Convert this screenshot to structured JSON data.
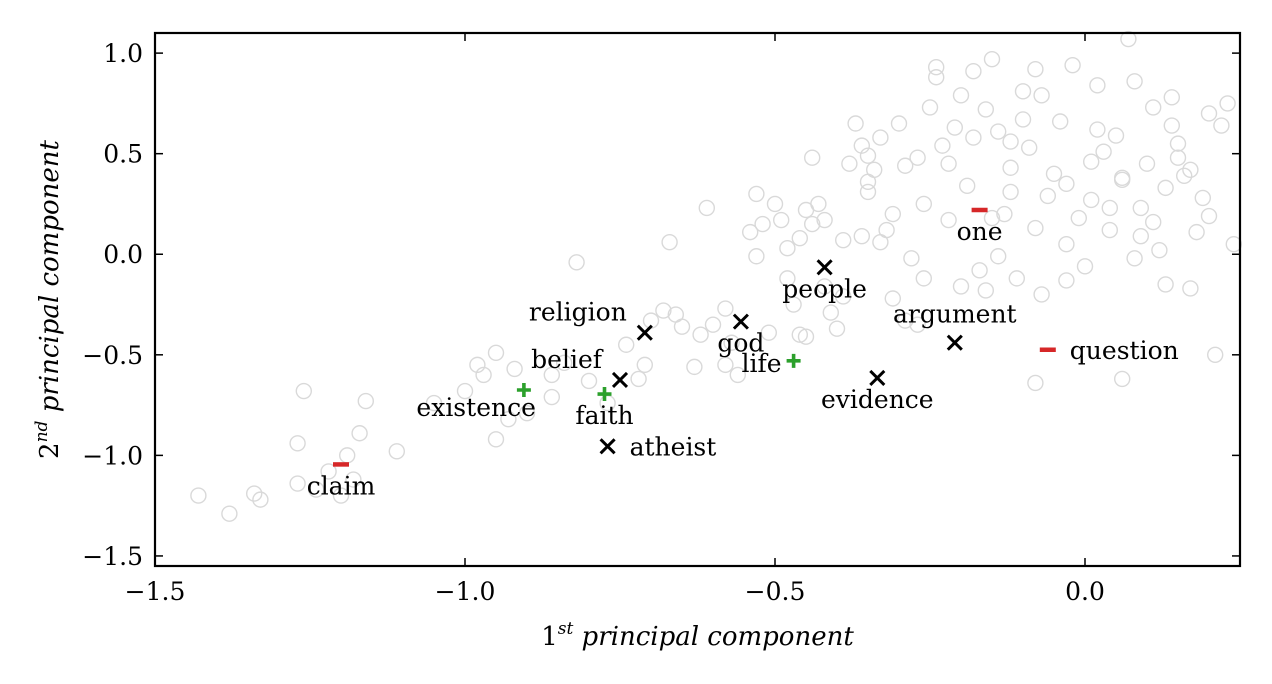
{
  "chart_data": {
    "type": "scatter",
    "title": "",
    "xlabel_base": "1",
    "xlabel_sup": "st",
    "xlabel_rest": " principal component",
    "ylabel_base": "2",
    "ylabel_sup": "nd",
    "ylabel_rest": " principal component",
    "xlim": [
      -1.5,
      0.25
    ],
    "ylim": [
      -1.55,
      1.1
    ],
    "xticks": [
      -1.5,
      -1.0,
      -0.5,
      0.0
    ],
    "xtick_labels": [
      "−1.5",
      "−1.0",
      "−0.5",
      "0.0"
    ],
    "yticks": [
      1.0,
      0.5,
      0.0,
      -0.5,
      -1.0,
      -1.5
    ],
    "ytick_labels": [
      "1.0",
      "0.5",
      "0.0",
      "−0.5",
      "−1.0",
      "−1.5"
    ],
    "grid": false,
    "colors": {
      "cross": "#000000",
      "plus": "#2ca02c",
      "minus": "#d62728",
      "background": "#d9d9d9"
    },
    "highlighted": [
      {
        "word": "religion",
        "marker": "cross",
        "x": -0.71,
        "y": -0.39,
        "label_pos": "top-left"
      },
      {
        "word": "god",
        "marker": "cross",
        "x": -0.555,
        "y": -0.335,
        "label_pos": "bottom"
      },
      {
        "word": "people",
        "marker": "cross",
        "x": -0.42,
        "y": -0.065,
        "label_pos": "bottom"
      },
      {
        "word": "belief",
        "marker": "cross",
        "x": -0.75,
        "y": -0.625,
        "label_pos": "top-left"
      },
      {
        "word": "atheist",
        "marker": "cross",
        "x": -0.77,
        "y": -0.955,
        "label_pos": "right"
      },
      {
        "word": "evidence",
        "marker": "cross",
        "x": -0.335,
        "y": -0.615,
        "label_pos": "bottom"
      },
      {
        "word": "argument",
        "marker": "cross",
        "x": -0.21,
        "y": -0.44,
        "label_pos": "top"
      },
      {
        "word": "existence",
        "marker": "plus",
        "x": -0.905,
        "y": -0.675,
        "label_pos": "bottom-left"
      },
      {
        "word": "faith",
        "marker": "plus",
        "x": -0.775,
        "y": -0.695,
        "label_pos": "bottom"
      },
      {
        "word": "life",
        "marker": "plus",
        "x": -0.47,
        "y": -0.53,
        "label_pos": "left"
      },
      {
        "word": "claim",
        "marker": "minus",
        "x": -1.2,
        "y": -1.045,
        "label_pos": "bottom"
      },
      {
        "word": "one",
        "marker": "minus",
        "x": -0.17,
        "y": 0.22,
        "label_pos": "bottom"
      },
      {
        "word": "question",
        "marker": "minus",
        "x": -0.06,
        "y": -0.475,
        "label_pos": "right"
      }
    ],
    "background_points": [
      [
        -1.43,
        -1.2
      ],
      [
        -1.38,
        -1.29
      ],
      [
        -1.34,
        -1.19
      ],
      [
        -1.33,
        -1.22
      ],
      [
        -1.27,
        -1.14
      ],
      [
        -1.27,
        -0.94
      ],
      [
        -1.26,
        -0.68
      ],
      [
        -1.24,
        -1.17
      ],
      [
        -1.22,
        -1.08
      ],
      [
        -1.2,
        -1.2
      ],
      [
        -1.19,
        -1.0
      ],
      [
        -1.17,
        -0.89
      ],
      [
        -1.16,
        -0.73
      ],
      [
        -1.11,
        -0.98
      ],
      [
        -1.0,
        -0.68
      ],
      [
        -0.97,
        -0.6
      ],
      [
        -0.95,
        -0.49
      ],
      [
        -0.95,
        -0.92
      ],
      [
        -0.93,
        -0.82
      ],
      [
        -0.92,
        -0.57
      ],
      [
        -0.9,
        -0.79
      ],
      [
        -0.86,
        -0.71
      ],
      [
        -0.84,
        -0.54
      ],
      [
        -0.82,
        -0.04
      ],
      [
        -0.8,
        -0.63
      ],
      [
        -0.77,
        -0.74
      ],
      [
        -0.74,
        -0.45
      ],
      [
        -0.71,
        -0.55
      ],
      [
        -0.7,
        -0.33
      ],
      [
        -0.68,
        -0.28
      ],
      [
        -0.67,
        0.06
      ],
      [
        -0.65,
        -0.36
      ],
      [
        -0.63,
        -0.56
      ],
      [
        -0.61,
        0.23
      ],
      [
        -0.6,
        -0.35
      ],
      [
        -0.58,
        -0.55
      ],
      [
        -0.57,
        -0.44
      ],
      [
        -0.56,
        -0.6
      ],
      [
        -0.54,
        0.11
      ],
      [
        -0.53,
        0.3
      ],
      [
        -0.52,
        0.15
      ],
      [
        -0.51,
        -0.39
      ],
      [
        -0.5,
        0.25
      ],
      [
        -0.49,
        0.17
      ],
      [
        -0.48,
        -0.12
      ],
      [
        -0.47,
        -0.25
      ],
      [
        -0.46,
        0.08
      ],
      [
        -0.45,
        -0.41
      ],
      [
        -0.44,
        0.48
      ],
      [
        -0.43,
        0.25
      ],
      [
        -0.42,
        0.17
      ],
      [
        -0.41,
        -0.29
      ],
      [
        -0.4,
        -0.37
      ],
      [
        -0.39,
        -0.21
      ],
      [
        -0.38,
        0.45
      ],
      [
        -0.37,
        0.65
      ],
      [
        -0.36,
        0.54
      ],
      [
        -0.35,
        0.49
      ],
      [
        -0.35,
        0.36
      ],
      [
        -0.34,
        0.42
      ],
      [
        -0.33,
        0.58
      ],
      [
        -0.32,
        0.12
      ],
      [
        -0.31,
        0.2
      ],
      [
        -0.3,
        0.65
      ],
      [
        -0.29,
        0.44
      ],
      [
        -0.28,
        -0.02
      ],
      [
        -0.27,
        0.48
      ],
      [
        -0.26,
        0.25
      ],
      [
        -0.25,
        0.73
      ],
      [
        -0.24,
        0.88
      ],
      [
        -0.23,
        0.54
      ],
      [
        -0.22,
        0.45
      ],
      [
        -0.21,
        0.63
      ],
      [
        -0.2,
        0.79
      ],
      [
        -0.19,
        0.34
      ],
      [
        -0.18,
        0.91
      ],
      [
        -0.17,
        -0.08
      ],
      [
        -0.16,
        0.72
      ],
      [
        -0.15,
        0.97
      ],
      [
        -0.14,
        0.61
      ],
      [
        -0.13,
        0.2
      ],
      [
        -0.12,
        0.43
      ],
      [
        -0.11,
        -0.12
      ],
      [
        -0.1,
        0.81
      ],
      [
        -0.09,
        0.53
      ],
      [
        -0.08,
        0.92
      ],
      [
        -0.07,
        -0.2
      ],
      [
        -0.06,
        0.29
      ],
      [
        -0.05,
        0.4
      ],
      [
        -0.04,
        0.66
      ],
      [
        -0.03,
        0.05
      ],
      [
        -0.02,
        0.94
      ],
      [
        -0.01,
        0.18
      ],
      [
        0.0,
        -0.06
      ],
      [
        0.01,
        0.27
      ],
      [
        0.02,
        0.84
      ],
      [
        0.03,
        0.51
      ],
      [
        0.04,
        0.12
      ],
      [
        0.05,
        0.59
      ],
      [
        0.06,
        0.37
      ],
      [
        0.07,
        1.07
      ],
      [
        0.08,
        -0.02
      ],
      [
        0.09,
        0.23
      ],
      [
        0.1,
        0.45
      ],
      [
        0.11,
        0.73
      ],
      [
        0.12,
        0.02
      ],
      [
        0.13,
        0.33
      ],
      [
        0.14,
        0.64
      ],
      [
        0.15,
        0.48
      ],
      [
        0.16,
        0.39
      ],
      [
        0.17,
        -0.17
      ],
      [
        0.19,
        0.28
      ],
      [
        0.2,
        0.7
      ],
      [
        0.21,
        -0.5
      ],
      [
        0.23,
        0.75
      ],
      [
        0.24,
        0.05
      ],
      [
        -0.62,
        -0.4
      ],
      [
        -0.66,
        -0.3
      ],
      [
        -0.48,
        0.03
      ],
      [
        -0.36,
        0.09
      ],
      [
        -0.26,
        -0.12
      ],
      [
        -0.18,
        0.58
      ],
      [
        -0.14,
        -0.01
      ],
      [
        -0.07,
        0.79
      ],
      [
        0.02,
        0.62
      ],
      [
        0.09,
        0.09
      ],
      [
        0.13,
        -0.15
      ],
      [
        0.2,
        0.19
      ],
      [
        -0.53,
        -0.01
      ],
      [
        -0.44,
        0.15
      ],
      [
        -0.31,
        -0.22
      ],
      [
        -0.22,
        0.17
      ],
      [
        -0.12,
        0.31
      ],
      [
        -0.03,
        -0.13
      ],
      [
        0.06,
        0.38
      ],
      [
        0.15,
        0.55
      ],
      [
        -0.72,
        -0.62
      ],
      [
        -0.86,
        -0.6
      ],
      [
        -0.98,
        -0.55
      ],
      [
        -1.05,
        -0.74
      ],
      [
        -1.18,
        -1.12
      ],
      [
        -0.39,
        0.07
      ],
      [
        -0.27,
        -0.35
      ],
      [
        -0.16,
        -0.18
      ],
      [
        -0.08,
        0.13
      ],
      [
        0.01,
        0.46
      ],
      [
        0.11,
        0.16
      ],
      [
        -0.58,
        -0.27
      ],
      [
        -0.46,
        -0.4
      ],
      [
        -0.35,
        0.31
      ],
      [
        -0.24,
        0.93
      ],
      [
        -0.12,
        0.56
      ],
      [
        0.04,
        0.23
      ],
      [
        0.17,
        0.42
      ],
      [
        -0.08,
        -0.64
      ],
      [
        0.06,
        -0.62
      ],
      [
        0.14,
        0.78
      ],
      [
        -0.2,
        -0.16
      ],
      [
        -0.29,
        -0.33
      ],
      [
        -0.42,
        -0.16
      ],
      [
        0.22,
        0.64
      ],
      [
        -0.03,
        0.35
      ],
      [
        0.08,
        0.86
      ],
      [
        0.18,
        0.11
      ],
      [
        -0.15,
        0.18
      ],
      [
        -0.1,
        0.67
      ],
      [
        -0.45,
        0.22
      ],
      [
        -0.33,
        0.06
      ]
    ]
  }
}
